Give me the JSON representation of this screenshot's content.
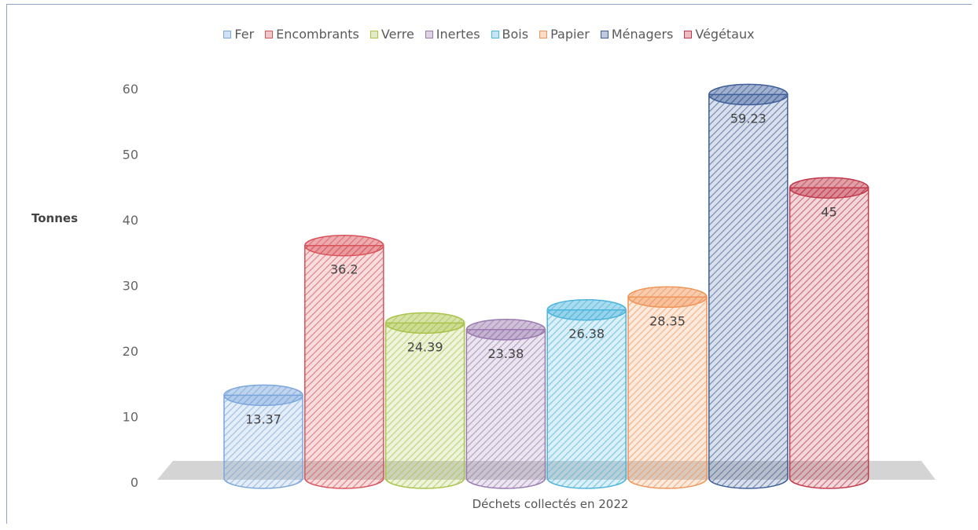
{
  "chart_data": {
    "type": "bar",
    "title": "",
    "xlabel": "Déchets collectés en 2022",
    "ylabel": "Tonnes",
    "ylim": [
      0,
      60
    ],
    "yticks": [
      "0",
      "10",
      "20",
      "30",
      "40",
      "50",
      "60"
    ],
    "grid": false,
    "legend_position": "top",
    "series": [
      {
        "name": "Fer",
        "values": [
          13.37
        ],
        "label": "13.37",
        "color": "#7ba7dc"
      },
      {
        "name": "Encombrants",
        "values": [
          36.2
        ],
        "label": "36.2",
        "color": "#d9535c"
      },
      {
        "name": "Verre",
        "values": [
          24.39
        ],
        "label": "24.39",
        "color": "#a8c34a"
      },
      {
        "name": "Inertes",
        "values": [
          23.38
        ],
        "label": "23.38",
        "color": "#9a7bb0"
      },
      {
        "name": "Bois",
        "values": [
          26.38
        ],
        "label": "26.38",
        "color": "#4db4dc"
      },
      {
        "name": "Papier",
        "values": [
          28.35
        ],
        "label": "28.35",
        "color": "#f0955a"
      },
      {
        "name": "Ménagers",
        "values": [
          59.23
        ],
        "label": "59.23",
        "color": "#3f5f9a"
      },
      {
        "name": "Végétaux",
        "values": [
          45
        ],
        "label": "45",
        "color": "#c0394a"
      }
    ]
  }
}
